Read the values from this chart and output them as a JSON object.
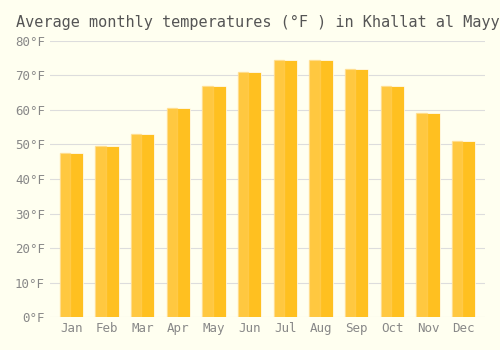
{
  "title": "Average monthly temperatures (°F ) in Khallat al Mayyah",
  "months": [
    "Jan",
    "Feb",
    "Mar",
    "Apr",
    "May",
    "Jun",
    "Jul",
    "Aug",
    "Sep",
    "Oct",
    "Nov",
    "Dec"
  ],
  "values": [
    47.5,
    49.5,
    53.0,
    60.5,
    67.0,
    71.0,
    74.5,
    74.5,
    72.0,
    67.0,
    59.0,
    51.0
  ],
  "bar_color_top": "#FFC020",
  "bar_color_bottom": "#FFB800",
  "background_color": "#FFFFF0",
  "grid_color": "#DDDDDD",
  "ylim": [
    0,
    80
  ],
  "yticks": [
    0,
    10,
    20,
    30,
    40,
    50,
    60,
    70,
    80
  ],
  "ytick_labels": [
    "0°F",
    "10°F",
    "20°F",
    "30°F",
    "40°F",
    "50°F",
    "60°F",
    "70°F",
    "80°F"
  ],
  "title_fontsize": 11,
  "tick_fontsize": 9,
  "font_color": "#888888"
}
